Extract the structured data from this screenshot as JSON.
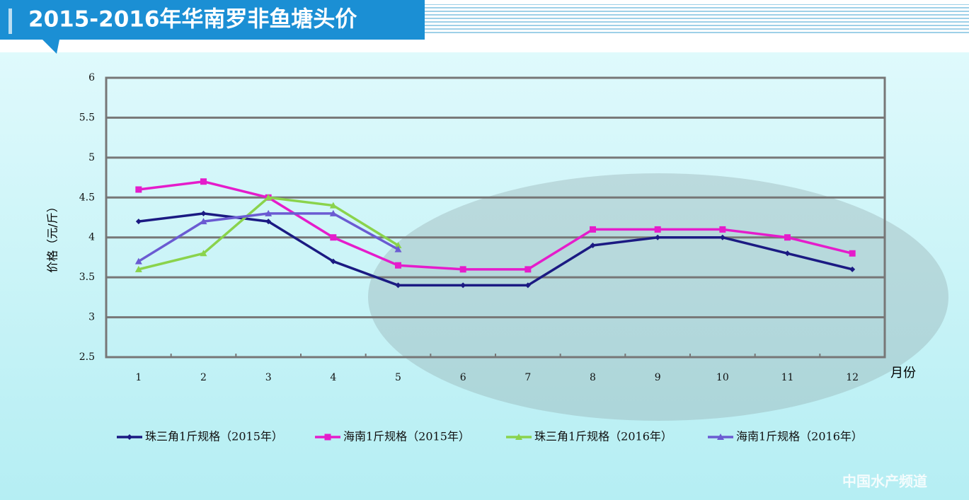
{
  "chart_data": {
    "type": "line",
    "title": "2015-2016年华南罗非鱼塘头价",
    "y_label": "价格（元/斤）",
    "x_label": "月份",
    "watermark": "中国水产频道",
    "categories": [
      "1",
      "2",
      "3",
      "4",
      "5",
      "6",
      "7",
      "8",
      "9",
      "10",
      "11",
      "12"
    ],
    "series": [
      {
        "name": "珠三角1斤规格（2015年）",
        "color": "#1b1a82",
        "marker": "diamond",
        "values": [
          4.2,
          4.3,
          4.2,
          3.7,
          3.4,
          3.4,
          3.4,
          3.9,
          4.0,
          4.0,
          3.8,
          3.6
        ]
      },
      {
        "name": "海南1斤规格（2015年）",
        "color": "#e51ccb",
        "marker": "square",
        "values": [
          4.6,
          4.7,
          4.5,
          4.0,
          3.65,
          3.6,
          3.6,
          4.1,
          4.1,
          4.1,
          4.0,
          3.8
        ]
      },
      {
        "name": "珠三角1斤规格（2016年）",
        "color": "#8ad34c",
        "marker": "triangle",
        "values": [
          3.6,
          3.8,
          4.5,
          4.4,
          3.9,
          null,
          null,
          null,
          null,
          null,
          null,
          null
        ]
      },
      {
        "name": "海南1斤规格（2016年）",
        "color": "#6b5bd2",
        "marker": "triangle",
        "values": [
          3.7,
          4.2,
          4.3,
          4.3,
          3.85,
          null,
          null,
          null,
          null,
          null,
          null,
          null
        ]
      }
    ],
    "ylim": [
      2.5,
      6
    ],
    "yticks": [
      2.5,
      3,
      3.5,
      4,
      4.5,
      5,
      5.5,
      6
    ],
    "grid": true,
    "legend": "bottom"
  }
}
